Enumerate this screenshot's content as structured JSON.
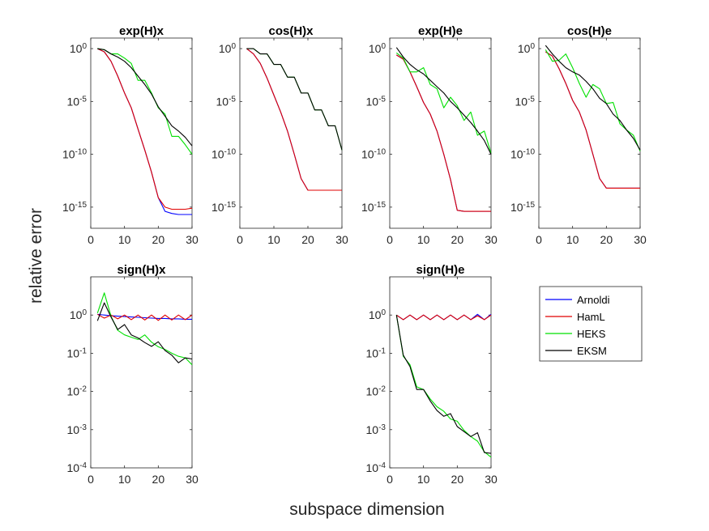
{
  "figure": {
    "xlabel": "subspace dimension",
    "ylabel": "relative error"
  },
  "colors": {
    "Arnoldi": "#0000ff",
    "HamL": "#e00000",
    "HEKS": "#00e000",
    "EKSM": "#000000"
  },
  "legend": [
    "Arnoldi",
    "HamL",
    "HEKS",
    "EKSM"
  ],
  "chart_data": [
    {
      "id": "p1",
      "type": "line",
      "title": "exp(H)x",
      "yscale": "log",
      "xlim": [
        0,
        30
      ],
      "ylim_exp": [
        -17,
        1
      ],
      "xticks": [
        "0",
        "10",
        "20",
        "30"
      ],
      "yticks_exp": [
        "0",
        "-5",
        "-10",
        "-15"
      ],
      "series": [
        {
          "name": "Arnoldi",
          "x": [
            2,
            4,
            6,
            8,
            10,
            12,
            14,
            16,
            18,
            20,
            22,
            24,
            26,
            28,
            30
          ],
          "y_exp": [
            0,
            -0.3,
            -1.2,
            -2.6,
            -4.2,
            -5.6,
            -7.6,
            -9.6,
            -11.7,
            -14.1,
            -15.4,
            -15.6,
            -15.7,
            -15.7,
            -15.7
          ]
        },
        {
          "name": "HamL",
          "x": [
            2,
            4,
            6,
            8,
            10,
            12,
            14,
            16,
            18,
            20,
            22,
            24,
            26,
            28,
            30
          ],
          "y_exp": [
            0,
            -0.3,
            -1.2,
            -2.6,
            -4.2,
            -5.6,
            -7.6,
            -9.6,
            -11.7,
            -14.1,
            -15.0,
            -15.2,
            -15.2,
            -15.2,
            -15.1
          ]
        },
        {
          "name": "HEKS",
          "x": [
            2,
            4,
            6,
            8,
            10,
            12,
            14,
            16,
            18,
            20,
            22,
            24,
            26,
            28,
            30
          ],
          "y_exp": [
            0,
            -0.1,
            -0.5,
            -0.5,
            -0.9,
            -1.4,
            -3.0,
            -3.0,
            -4.2,
            -5.6,
            -6.2,
            -8.3,
            -8.3,
            -9.1,
            -10.0
          ]
        },
        {
          "name": "EKSM",
          "x": [
            2,
            4,
            6,
            8,
            10,
            12,
            14,
            16,
            18,
            20,
            22,
            24,
            26,
            28,
            30
          ],
          "y_exp": [
            0,
            -0.1,
            -0.5,
            -0.8,
            -1.2,
            -1.8,
            -2.6,
            -3.4,
            -4.3,
            -5.5,
            -6.4,
            -7.3,
            -7.8,
            -8.4,
            -9.2
          ]
        }
      ]
    },
    {
      "id": "p2",
      "type": "line",
      "title": "cos(H)x",
      "yscale": "log",
      "xlim": [
        0,
        30
      ],
      "ylim_exp": [
        -17,
        1
      ],
      "xticks": [
        "0",
        "10",
        "20",
        "30"
      ],
      "yticks_exp": [
        "0",
        "-5",
        "-10",
        "-15"
      ],
      "series": [
        {
          "name": "Arnoldi",
          "x": [
            2,
            4,
            6,
            8,
            10,
            12,
            14,
            16,
            18,
            20,
            22,
            24,
            26,
            28,
            30
          ],
          "y_exp": [
            0,
            -0.5,
            -1.4,
            -2.8,
            -4.4,
            -6.0,
            -7.8,
            -10.0,
            -12.3,
            -13.4,
            -13.4,
            -13.4,
            -13.4,
            -13.4,
            -13.4
          ]
        },
        {
          "name": "HamL",
          "x": [
            2,
            4,
            6,
            8,
            10,
            12,
            14,
            16,
            18,
            20,
            22,
            24,
            26,
            28,
            30
          ],
          "y_exp": [
            0,
            -0.5,
            -1.4,
            -2.8,
            -4.4,
            -6.0,
            -7.8,
            -10.0,
            -12.3,
            -13.4,
            -13.4,
            -13.4,
            -13.4,
            -13.4,
            -13.4
          ]
        },
        {
          "name": "HEKS",
          "x": [
            2,
            4,
            6,
            8,
            10,
            12,
            14,
            16,
            18,
            20,
            22,
            24,
            26,
            28,
            30
          ],
          "y_exp": [
            0,
            0,
            -0.5,
            -0.5,
            -1.5,
            -1.5,
            -2.7,
            -2.7,
            -4.2,
            -4.2,
            -5.8,
            -5.8,
            -7.3,
            -7.3,
            -9.6
          ]
        },
        {
          "name": "EKSM",
          "x": [
            2,
            4,
            6,
            8,
            10,
            12,
            14,
            16,
            18,
            20,
            22,
            24,
            26,
            28,
            30
          ],
          "y_exp": [
            0,
            0,
            -0.5,
            -0.5,
            -1.5,
            -1.5,
            -2.7,
            -2.7,
            -4.2,
            -4.2,
            -5.8,
            -5.8,
            -7.3,
            -7.3,
            -9.6
          ]
        }
      ]
    },
    {
      "id": "p3",
      "type": "line",
      "title": "exp(H)e",
      "yscale": "log",
      "xlim": [
        0,
        30
      ],
      "ylim_exp": [
        -17,
        1
      ],
      "xticks": [
        "0",
        "10",
        "20",
        "30"
      ],
      "yticks_exp": [
        "0",
        "-5",
        "-10",
        "-15"
      ],
      "series": [
        {
          "name": "Arnoldi",
          "x": [
            2,
            4,
            6,
            8,
            10,
            12,
            14,
            16,
            18,
            20,
            22,
            24,
            26,
            28,
            30
          ],
          "y_exp": [
            -0.6,
            -1.0,
            -2.2,
            -3.6,
            -5.1,
            -6.2,
            -7.8,
            -10.0,
            -12.4,
            -15.3,
            -15.4,
            -15.4,
            -15.4,
            -15.4,
            -15.4
          ]
        },
        {
          "name": "HamL",
          "x": [
            2,
            4,
            6,
            8,
            10,
            12,
            14,
            16,
            18,
            20,
            22,
            24,
            26,
            28,
            30
          ],
          "y_exp": [
            -0.6,
            -1.0,
            -2.2,
            -3.6,
            -5.1,
            -6.2,
            -7.8,
            -10.0,
            -12.4,
            -15.3,
            -15.4,
            -15.4,
            -15.4,
            -15.4,
            -15.4
          ]
        },
        {
          "name": "HEKS",
          "x": [
            2,
            4,
            6,
            8,
            10,
            12,
            14,
            16,
            18,
            20,
            22,
            24,
            26,
            28,
            30
          ],
          "y_exp": [
            -0.4,
            -0.9,
            -2.2,
            -2.2,
            -1.8,
            -3.4,
            -3.8,
            -5.6,
            -4.6,
            -5.4,
            -6.8,
            -6.0,
            -8.2,
            -7.8,
            -9.9
          ]
        },
        {
          "name": "EKSM",
          "x": [
            2,
            4,
            6,
            8,
            10,
            12,
            14,
            16,
            18,
            20,
            22,
            24,
            26,
            28,
            30
          ],
          "y_exp": [
            0.1,
            -0.8,
            -1.5,
            -2.0,
            -2.4,
            -3.0,
            -3.6,
            -4.2,
            -5.0,
            -5.6,
            -6.3,
            -7.0,
            -7.8,
            -8.7,
            -10.0
          ]
        }
      ]
    },
    {
      "id": "p4",
      "type": "line",
      "title": "cos(H)e",
      "yscale": "log",
      "xlim": [
        0,
        30
      ],
      "ylim_exp": [
        -17,
        1
      ],
      "xticks": [
        "0",
        "10",
        "20",
        "30"
      ],
      "yticks_exp": [
        "0",
        "-5",
        "-10",
        "-15"
      ],
      "series": [
        {
          "name": "Arnoldi",
          "x": [
            2,
            4,
            6,
            8,
            10,
            12,
            14,
            16,
            18,
            20,
            22,
            24,
            26,
            28,
            30
          ],
          "y_exp": [
            -0.3,
            -0.7,
            -1.9,
            -3.3,
            -4.9,
            -6.0,
            -7.7,
            -10.0,
            -12.3,
            -13.2,
            -13.2,
            -13.2,
            -13.2,
            -13.2,
            -13.2
          ]
        },
        {
          "name": "HamL",
          "x": [
            2,
            4,
            6,
            8,
            10,
            12,
            14,
            16,
            18,
            20,
            22,
            24,
            26,
            28,
            30
          ],
          "y_exp": [
            -0.3,
            -0.7,
            -1.9,
            -3.3,
            -4.9,
            -6.0,
            -7.7,
            -10.0,
            -12.3,
            -13.2,
            -13.2,
            -13.2,
            -13.2,
            -13.2,
            -13.2
          ]
        },
        {
          "name": "HEKS",
          "x": [
            2,
            4,
            6,
            8,
            10,
            12,
            14,
            16,
            18,
            20,
            22,
            24,
            26,
            28,
            30
          ],
          "y_exp": [
            -0.1,
            -1.2,
            -1.1,
            -0.5,
            -1.8,
            -3.3,
            -4.6,
            -3.4,
            -3.8,
            -5.2,
            -5.1,
            -7.1,
            -7.7,
            -8.2,
            -9.7
          ]
        },
        {
          "name": "EKSM",
          "x": [
            2,
            4,
            6,
            8,
            10,
            12,
            14,
            16,
            18,
            20,
            22,
            24,
            26,
            28,
            30
          ],
          "y_exp": [
            0.3,
            -0.5,
            -1.2,
            -1.8,
            -2.2,
            -2.5,
            -3.1,
            -3.8,
            -4.7,
            -5.2,
            -6.2,
            -6.8,
            -7.7,
            -8.5,
            -9.6
          ]
        }
      ]
    },
    {
      "id": "p5",
      "type": "line",
      "title": "sign(H)x",
      "yscale": "log",
      "xlim": [
        0,
        30
      ],
      "ylim_exp": [
        -4,
        1
      ],
      "xticks": [
        "0",
        "10",
        "20",
        "30"
      ],
      "yticks_exp": [
        "0",
        "-1",
        "-2",
        "-3",
        "-4"
      ],
      "series": [
        {
          "name": "Arnoldi",
          "x": [
            2,
            4,
            6,
            8,
            10,
            12,
            14,
            16,
            18,
            20,
            22,
            24,
            26,
            28,
            30
          ],
          "y_exp": [
            0.02,
            0.0,
            -0.02,
            -0.03,
            -0.04,
            -0.05,
            -0.06,
            -0.07,
            -0.08,
            -0.09,
            -0.09,
            -0.1,
            -0.1,
            -0.11,
            -0.11
          ]
        },
        {
          "name": "HamL",
          "x": [
            2,
            4,
            6,
            8,
            10,
            12,
            14,
            16,
            18,
            20,
            22,
            24,
            26,
            28,
            30
          ],
          "y_exp": [
            0.02,
            -0.08,
            0.0,
            -0.1,
            0.0,
            -0.12,
            0.0,
            -0.13,
            0.0,
            -0.14,
            0.0,
            -0.13,
            0.0,
            -0.12,
            0.0
          ]
        },
        {
          "name": "HEKS",
          "x": [
            2,
            4,
            6,
            8,
            10,
            12,
            14,
            16,
            18,
            20,
            22,
            24,
            26,
            28,
            30
          ],
          "y_exp": [
            0.05,
            0.58,
            -0.03,
            -0.4,
            -0.52,
            -0.58,
            -0.64,
            -0.52,
            -0.71,
            -0.83,
            -0.9,
            -1.0,
            -1.08,
            -1.12,
            -1.3
          ]
        },
        {
          "name": "EKSM",
          "x": [
            2,
            4,
            6,
            8,
            10,
            12,
            14,
            16,
            18,
            20,
            22,
            24,
            26,
            28,
            30
          ],
          "y_exp": [
            -0.15,
            0.32,
            -0.05,
            -0.38,
            -0.25,
            -0.52,
            -0.6,
            -0.72,
            -0.82,
            -0.7,
            -0.93,
            -1.05,
            -1.25,
            -1.12,
            -1.15
          ]
        }
      ]
    },
    {
      "id": "p6",
      "type": "line",
      "title": "sign(H)e",
      "yscale": "log",
      "xlim": [
        0,
        30
      ],
      "ylim_exp": [
        -4,
        1
      ],
      "xticks": [
        "0",
        "10",
        "20",
        "30"
      ],
      "yticks_exp": [
        "0",
        "-1",
        "-2",
        "-3",
        "-4"
      ],
      "series": [
        {
          "name": "Arnoldi",
          "x": [
            2,
            4,
            6,
            8,
            10,
            12,
            14,
            16,
            18,
            20,
            22,
            24,
            26,
            28,
            30
          ],
          "y_exp": [
            0.0,
            -0.12,
            0.0,
            -0.12,
            0.0,
            -0.12,
            0.0,
            -0.12,
            0.0,
            -0.12,
            0.0,
            -0.12,
            0.02,
            -0.12,
            0.02
          ]
        },
        {
          "name": "HamL",
          "x": [
            2,
            4,
            6,
            8,
            10,
            12,
            14,
            16,
            18,
            20,
            22,
            24,
            26,
            28,
            30
          ],
          "y_exp": [
            0.0,
            -0.12,
            0.0,
            -0.12,
            0.0,
            -0.12,
            0.0,
            -0.12,
            0.0,
            -0.12,
            0.0,
            -0.12,
            -0.02,
            -0.12,
            0.0
          ]
        },
        {
          "name": "HEKS",
          "x": [
            2,
            4,
            6,
            8,
            10,
            12,
            14,
            16,
            18,
            20,
            22,
            24,
            26,
            28,
            30
          ],
          "y_exp": [
            0.0,
            -1.08,
            -1.3,
            -1.88,
            -1.95,
            -2.2,
            -2.4,
            -2.52,
            -2.72,
            -2.78,
            -3.02,
            -3.18,
            -3.3,
            -3.58,
            -3.72
          ]
        },
        {
          "name": "EKSM",
          "x": [
            2,
            4,
            6,
            8,
            10,
            12,
            14,
            16,
            18,
            20,
            22,
            24,
            26,
            28,
            30
          ],
          "y_exp": [
            0.0,
            -1.05,
            -1.35,
            -1.95,
            -1.95,
            -2.25,
            -2.5,
            -2.65,
            -2.58,
            -2.92,
            -3.05,
            -3.18,
            -3.08,
            -3.6,
            -3.62
          ]
        }
      ]
    }
  ]
}
